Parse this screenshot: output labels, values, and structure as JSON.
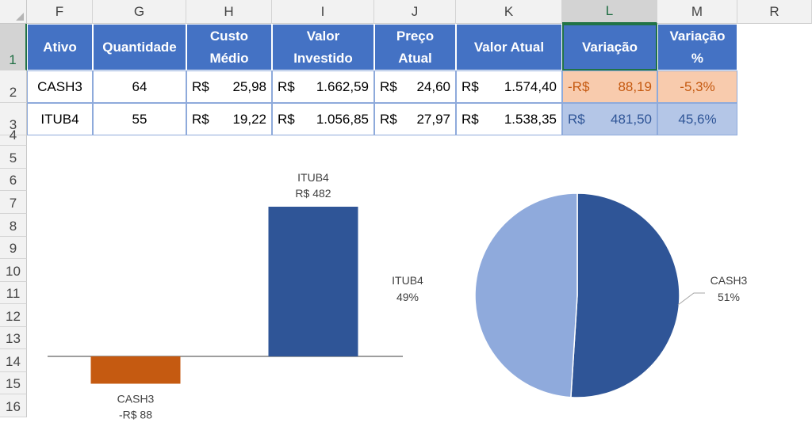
{
  "columns": [
    "F",
    "G",
    "H",
    "I",
    "J",
    "K",
    "L",
    "M",
    "R"
  ],
  "selected_column": "L",
  "rows": [
    "1",
    "2",
    "3",
    "4",
    "5",
    "6",
    "7",
    "8",
    "9",
    "10",
    "11",
    "12",
    "13",
    "14",
    "15",
    "16"
  ],
  "selected_row": "1",
  "table": {
    "headers": [
      "Ativo",
      "Quantidade",
      "Custo Médio",
      "Valor Investido",
      "Preço Atual",
      "Valor Atual",
      "Variação",
      "Variação %"
    ],
    "header_lines": [
      [
        "Ativo"
      ],
      [
        "Quantidade"
      ],
      [
        "Custo",
        "Médio"
      ],
      [
        "Valor",
        "Investido"
      ],
      [
        "Preço",
        "Atual"
      ],
      [
        "Valor Atual"
      ],
      [
        "Variação"
      ],
      [
        "Variação",
        "%"
      ]
    ],
    "rows": [
      {
        "ativo": "CASH3",
        "quantidade": "64",
        "custo_prefix": "R$",
        "custo": "25,98",
        "investido_prefix": "R$",
        "investido": "1.662,59",
        "preco_prefix": "R$",
        "preco": "24,60",
        "atual_prefix": "R$",
        "atual": "1.574,40",
        "variacao_prefix": "-R$",
        "variacao": "88,19",
        "variacao_pct": "-5,3%"
      },
      {
        "ativo": "ITUB4",
        "quantidade": "55",
        "custo_prefix": "R$",
        "custo": "19,22",
        "investido_prefix": "R$",
        "investido": "1.056,85",
        "preco_prefix": "R$",
        "preco": "27,97",
        "atual_prefix": "R$",
        "atual": "1.538,35",
        "variacao_prefix": "R$",
        "variacao": "481,50",
        "variacao_pct": "45,6%"
      }
    ]
  },
  "colors": {
    "header_blue": "#4472c4",
    "negative_bg": "#f8cbad",
    "negative_text": "#c55a11",
    "positive_bg": "#b4c6e7",
    "positive_text": "#2f5597",
    "bar_negative": "#c55a11",
    "bar_positive": "#2f5597",
    "pie_cash3": "#2f5597",
    "pie_itub4": "#8faadc",
    "selection_green": "#217346"
  },
  "chart_data": [
    {
      "type": "bar",
      "categories": [
        "CASH3",
        "ITUB4"
      ],
      "values": [
        -88,
        482
      ],
      "data_labels": [
        {
          "name": "CASH3",
          "value": "-R$ 88"
        },
        {
          "name": "ITUB4",
          "value": "R$ 482"
        }
      ],
      "title": "",
      "xlabel": "",
      "ylabel": "",
      "grid": false,
      "legend": "none"
    },
    {
      "type": "pie",
      "categories": [
        "CASH3",
        "ITUB4"
      ],
      "values": [
        51,
        49
      ],
      "data_labels": [
        {
          "name": "CASH3",
          "value": "51%"
        },
        {
          "name": "ITUB4",
          "value": "49%"
        }
      ],
      "title": "",
      "legend": "none"
    }
  ]
}
